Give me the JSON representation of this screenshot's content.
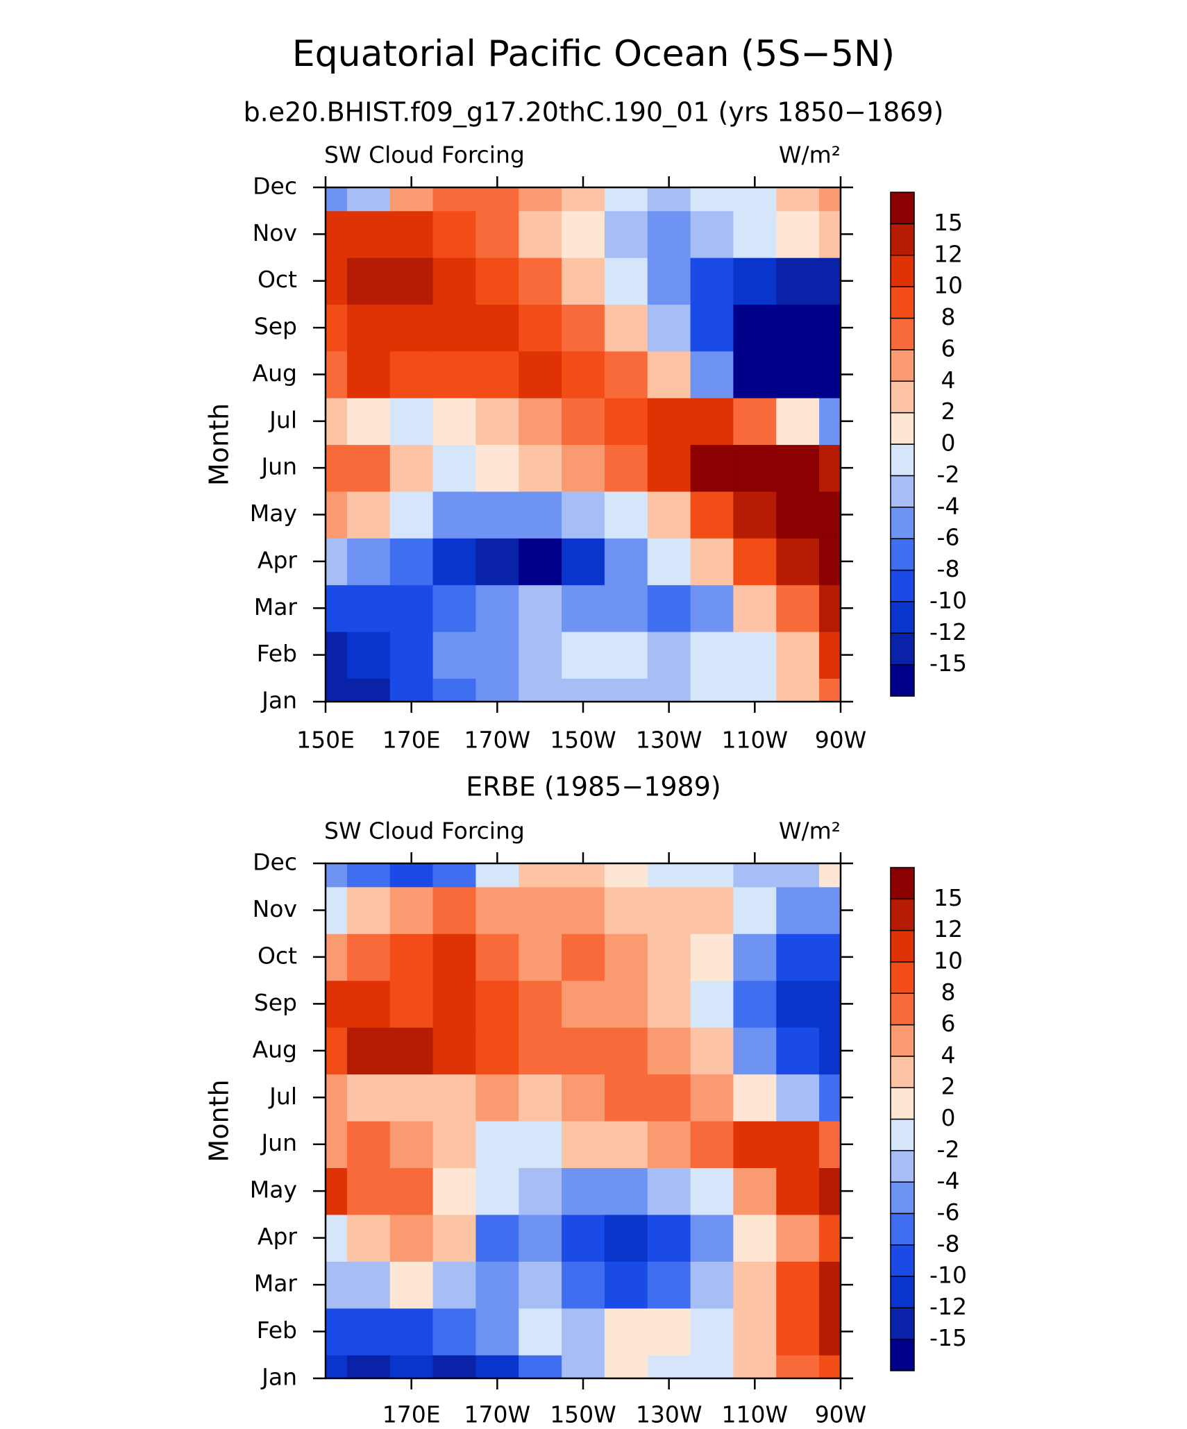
{
  "title": "Equatorial Pacific Ocean (5S−5N)",
  "chart_data": [
    {
      "type": "contour",
      "title": "b.e20.BHIST.f09_g17.20thC.190_01 (yrs 1850−1869)",
      "left_label": "SW Cloud Forcing",
      "right_label": "W/m²",
      "ylabel": "Month",
      "x": [
        150,
        160,
        170,
        180,
        190,
        200,
        210,
        220,
        230,
        240,
        250,
        260,
        270
      ],
      "y": [
        "Jan",
        "Feb",
        "Mar",
        "Apr",
        "May",
        "Jun",
        "Jul",
        "Aug",
        "Sep",
        "Oct",
        "Nov",
        "Dec"
      ],
      "xlim": [
        150,
        270
      ],
      "xticks": [
        {
          "value": 150,
          "label": "150E"
        },
        {
          "value": 170,
          "label": "170E"
        },
        {
          "value": 190,
          "label": "170W"
        },
        {
          "value": 210,
          "label": "150W"
        },
        {
          "value": 230,
          "label": "130W"
        },
        {
          "value": 250,
          "label": "110W"
        },
        {
          "value": 270,
          "label": "90W"
        }
      ],
      "z": [
        [
          -13,
          -14,
          -10,
          -8,
          -6,
          -4,
          -3,
          -3,
          -3,
          -2,
          -1,
          2,
          6
        ],
        [
          -13,
          -12,
          -10,
          -6,
          -5,
          -3,
          -1,
          -2,
          -3,
          -2,
          -1,
          2,
          10
        ],
        [
          -9,
          -10,
          -9,
          -8,
          -6,
          -4,
          -6,
          -6,
          -7,
          -6,
          2,
          6,
          14
        ],
        [
          -3,
          -6,
          -8,
          -12,
          -13,
          -16,
          -12,
          -6,
          -2,
          2,
          8,
          14,
          17
        ],
        [
          4,
          2,
          -2,
          -6,
          -6,
          -6,
          -4,
          -2,
          2,
          8,
          14,
          17,
          17
        ],
        [
          6,
          6,
          2,
          -2,
          1,
          2,
          4,
          6,
          10,
          17,
          17,
          16,
          12
        ],
        [
          3,
          0,
          -1,
          0,
          3,
          5,
          7,
          9,
          10,
          10,
          6,
          1,
          -6
        ],
        [
          6,
          10,
          8,
          9,
          9,
          10,
          8,
          6,
          2,
          -6,
          -16,
          -16,
          -16
        ],
        [
          9,
          11,
          10,
          10,
          10,
          8,
          6,
          3,
          -3,
          -10,
          -16,
          -16,
          -16
        ],
        [
          10,
          12,
          12,
          11,
          9,
          6,
          2,
          -2,
          -5,
          -10,
          -12,
          -14,
          -14
        ],
        [
          10,
          10,
          10,
          9,
          6,
          3,
          0,
          -3,
          -6,
          -4,
          -2,
          0,
          2
        ],
        [
          -6,
          -4,
          4,
          6,
          6,
          4,
          2,
          -2,
          -4,
          -2,
          -1,
          2,
          4
        ]
      ],
      "levels": [
        -15,
        -12,
        -10,
        -8,
        -6,
        -4,
        -2,
        0,
        2,
        4,
        6,
        8,
        10,
        12,
        15
      ],
      "colors": [
        "#00008b",
        "#0a22a8",
        "#0a35cc",
        "#1a4be6",
        "#3f6ff0",
        "#6f93f2",
        "#a6bdf5",
        "#d5e5fa",
        "#fde7d4",
        "#fcc3a5",
        "#fa9a70",
        "#f86a3a",
        "#f24d17",
        "#df3306",
        "#b61c04",
        "#8b0000"
      ]
    },
    {
      "type": "contour",
      "title": "ERBE (1985−1989)",
      "left_label": "SW Cloud Forcing",
      "right_label": "W/m²",
      "ylabel": "Month",
      "x": [
        150,
        160,
        170,
        180,
        190,
        200,
        210,
        220,
        230,
        240,
        250,
        260,
        270
      ],
      "y": [
        "Jan",
        "Feb",
        "Mar",
        "Apr",
        "May",
        "Jun",
        "Jul",
        "Aug",
        "Sep",
        "Oct",
        "Nov",
        "Dec"
      ],
      "xlim": [
        150,
        270
      ],
      "xticks": [
        {
          "value": 170,
          "label": "170E"
        },
        {
          "value": 190,
          "label": "170W"
        },
        {
          "value": 210,
          "label": "150W"
        },
        {
          "value": 230,
          "label": "130W"
        },
        {
          "value": 250,
          "label": "110W"
        },
        {
          "value": 270,
          "label": "90W"
        }
      ],
      "z": [
        [
          -12,
          -13,
          -12,
          -14,
          -12,
          -8,
          -3,
          1,
          -1,
          -1,
          2,
          6,
          8
        ],
        [
          -10,
          -10,
          -10,
          -8,
          -6,
          -2,
          -3,
          1,
          1,
          -1,
          2,
          8,
          12
        ],
        [
          -4,
          -4,
          1,
          -4,
          -6,
          -4,
          -8,
          -10,
          -8,
          -4,
          2,
          8,
          14
        ],
        [
          -2,
          2,
          4,
          2,
          -8,
          -6,
          -10,
          -12,
          -10,
          -6,
          0,
          4,
          8
        ],
        [
          10,
          6,
          6,
          1,
          -2,
          -4,
          -6,
          -6,
          -4,
          -2,
          4,
          10,
          12
        ],
        [
          4,
          6,
          4,
          2,
          -2,
          -2,
          2,
          2,
          4,
          6,
          10,
          10,
          6
        ],
        [
          4,
          2,
          2,
          2,
          4,
          2,
          4,
          6,
          6,
          4,
          0,
          -4,
          -8
        ],
        [
          8,
          12,
          12,
          10,
          8,
          6,
          6,
          6,
          4,
          2,
          -6,
          -10,
          -12
        ],
        [
          10,
          10,
          8,
          10,
          8,
          6,
          4,
          4,
          2,
          -2,
          -8,
          -12,
          -12
        ],
        [
          4,
          6,
          8,
          10,
          6,
          4,
          6,
          4,
          2,
          0,
          -6,
          -10,
          -10
        ],
        [
          -2,
          2,
          4,
          6,
          4,
          4,
          4,
          2,
          2,
          2,
          -2,
          -6,
          -6
        ],
        [
          -6,
          -8,
          -10,
          -8,
          -2,
          2,
          2,
          1,
          -1,
          -1,
          -4,
          -3,
          0
        ]
      ],
      "levels": [
        -15,
        -12,
        -10,
        -8,
        -6,
        -4,
        -2,
        0,
        2,
        4,
        6,
        8,
        10,
        12,
        15
      ],
      "colors": [
        "#00008b",
        "#0a22a8",
        "#0a35cc",
        "#1a4be6",
        "#3f6ff0",
        "#6f93f2",
        "#a6bdf5",
        "#d5e5fa",
        "#fde7d4",
        "#fcc3a5",
        "#fa9a70",
        "#f86a3a",
        "#f24d17",
        "#df3306",
        "#b61c04",
        "#8b0000"
      ]
    }
  ]
}
